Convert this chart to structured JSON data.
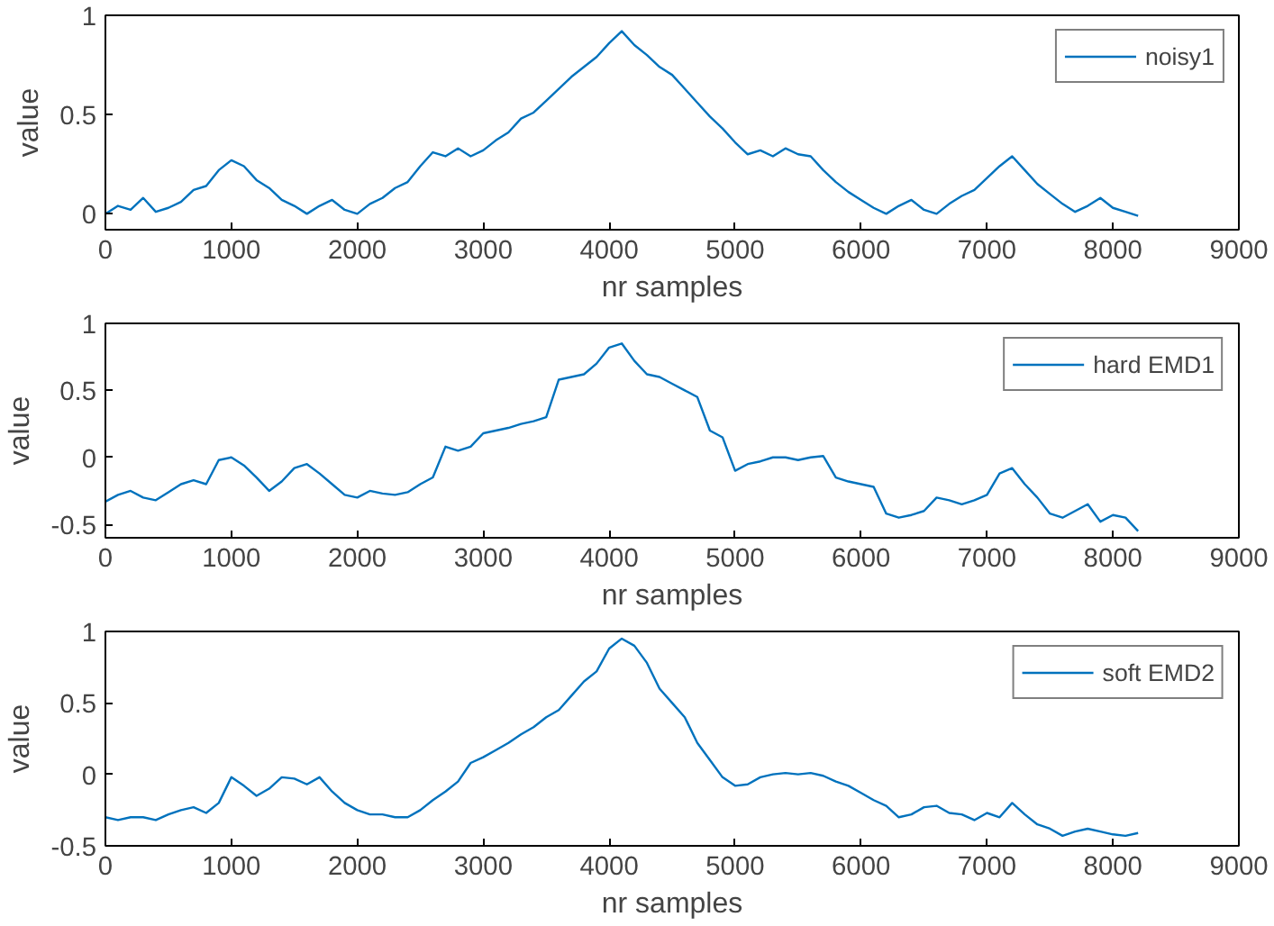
{
  "chart_data": [
    {
      "type": "line",
      "xlabel": "nr samples",
      "ylabel": "value",
      "xlim": [
        0,
        9000
      ],
      "xticks": [
        0,
        1000,
        2000,
        3000,
        4000,
        5000,
        6000,
        7000,
        8000,
        9000
      ],
      "ylim": [
        -0.08,
        1
      ],
      "yticks": [
        0,
        0.5,
        1
      ],
      "grid": false,
      "legend": "top right",
      "x": [
        0,
        100,
        200,
        300,
        400,
        500,
        600,
        700,
        800,
        900,
        1000,
        1100,
        1200,
        1300,
        1400,
        1500,
        1600,
        1700,
        1800,
        1900,
        2000,
        2100,
        2200,
        2300,
        2400,
        2500,
        2600,
        2700,
        2800,
        2900,
        3000,
        3100,
        3200,
        3300,
        3400,
        3500,
        3600,
        3700,
        3800,
        3900,
        4000,
        4100,
        4200,
        4300,
        4400,
        4500,
        4600,
        4700,
        4800,
        4900,
        5000,
        5100,
        5200,
        5300,
        5400,
        5500,
        5600,
        5700,
        5800,
        5900,
        6000,
        6100,
        6200,
        6300,
        6400,
        6500,
        6600,
        6700,
        6800,
        6900,
        7000,
        7100,
        7200,
        7300,
        7400,
        7500,
        7600,
        7700,
        7800,
        7900,
        8000,
        8100,
        8200
      ],
      "series": [
        {
          "name": "noisy1",
          "color": "#0072bd",
          "values": [
            0.0,
            0.04,
            0.02,
            0.08,
            0.01,
            0.03,
            0.06,
            0.12,
            0.14,
            0.22,
            0.27,
            0.24,
            0.17,
            0.13,
            0.07,
            0.04,
            0.0,
            0.04,
            0.07,
            0.02,
            0.0,
            0.05,
            0.08,
            0.13,
            0.16,
            0.24,
            0.31,
            0.29,
            0.33,
            0.29,
            0.32,
            0.37,
            0.41,
            0.48,
            0.51,
            0.57,
            0.63,
            0.69,
            0.74,
            0.79,
            0.86,
            0.92,
            0.85,
            0.8,
            0.74,
            0.7,
            0.63,
            0.56,
            0.49,
            0.43,
            0.36,
            0.3,
            0.32,
            0.29,
            0.33,
            0.3,
            0.29,
            0.22,
            0.16,
            0.11,
            0.07,
            0.03,
            0.0,
            0.04,
            0.07,
            0.02,
            0.0,
            0.05,
            0.09,
            0.12,
            0.18,
            0.24,
            0.29,
            0.22,
            0.15,
            0.1,
            0.05,
            0.01,
            0.04,
            0.08,
            0.03,
            0.01,
            -0.01
          ]
        }
      ]
    },
    {
      "type": "line",
      "xlabel": "nr samples",
      "ylabel": "value",
      "xlim": [
        0,
        9000
      ],
      "xticks": [
        0,
        1000,
        2000,
        3000,
        4000,
        5000,
        6000,
        7000,
        8000,
        9000
      ],
      "ylim": [
        -0.6,
        1
      ],
      "yticks": [
        -0.5,
        0,
        0.5,
        1
      ],
      "grid": false,
      "legend": "top right",
      "x": [
        0,
        100,
        200,
        300,
        400,
        500,
        600,
        700,
        800,
        900,
        1000,
        1100,
        1200,
        1300,
        1400,
        1500,
        1600,
        1700,
        1800,
        1900,
        2000,
        2100,
        2200,
        2300,
        2400,
        2500,
        2600,
        2700,
        2800,
        2900,
        3000,
        3100,
        3200,
        3300,
        3400,
        3500,
        3600,
        3700,
        3800,
        3900,
        4000,
        4100,
        4200,
        4300,
        4400,
        4500,
        4600,
        4700,
        4800,
        4900,
        5000,
        5100,
        5200,
        5300,
        5400,
        5500,
        5600,
        5700,
        5800,
        5900,
        6000,
        6100,
        6200,
        6300,
        6400,
        6500,
        6600,
        6700,
        6800,
        6900,
        7000,
        7100,
        7200,
        7300,
        7400,
        7500,
        7600,
        7700,
        7800,
        7900,
        8000,
        8100,
        8200
      ],
      "series": [
        {
          "name": "hard EMD1",
          "color": "#0072bd",
          "values": [
            -0.33,
            -0.28,
            -0.25,
            -0.3,
            -0.32,
            -0.26,
            -0.2,
            -0.17,
            -0.2,
            -0.02,
            0.0,
            -0.06,
            -0.15,
            -0.25,
            -0.18,
            -0.08,
            -0.05,
            -0.12,
            -0.2,
            -0.28,
            -0.3,
            -0.25,
            -0.27,
            -0.28,
            -0.26,
            -0.2,
            -0.15,
            0.08,
            0.05,
            0.08,
            0.18,
            0.2,
            0.22,
            0.25,
            0.27,
            0.3,
            0.58,
            0.6,
            0.62,
            0.7,
            0.82,
            0.85,
            0.72,
            0.62,
            0.6,
            0.55,
            0.5,
            0.45,
            0.2,
            0.15,
            -0.1,
            -0.05,
            -0.03,
            0.0,
            0.0,
            -0.02,
            0.0,
            0.01,
            -0.15,
            -0.18,
            -0.2,
            -0.22,
            -0.42,
            -0.45,
            -0.43,
            -0.4,
            -0.3,
            -0.32,
            -0.35,
            -0.32,
            -0.28,
            -0.12,
            -0.08,
            -0.2,
            -0.3,
            -0.42,
            -0.45,
            -0.4,
            -0.35,
            -0.48,
            -0.43,
            -0.45,
            -0.55
          ]
        }
      ]
    },
    {
      "type": "line",
      "xlabel": "nr samples",
      "ylabel": "value",
      "xlim": [
        0,
        9000
      ],
      "xticks": [
        0,
        1000,
        2000,
        3000,
        4000,
        5000,
        6000,
        7000,
        8000,
        9000
      ],
      "ylim": [
        -0.5,
        1
      ],
      "yticks": [
        -0.5,
        0,
        0.5,
        1
      ],
      "grid": false,
      "legend": "top right",
      "x": [
        0,
        100,
        200,
        300,
        400,
        500,
        600,
        700,
        800,
        900,
        1000,
        1100,
        1200,
        1300,
        1400,
        1500,
        1600,
        1700,
        1800,
        1900,
        2000,
        2100,
        2200,
        2300,
        2400,
        2500,
        2600,
        2700,
        2800,
        2900,
        3000,
        3100,
        3200,
        3300,
        3400,
        3500,
        3600,
        3700,
        3800,
        3900,
        4000,
        4100,
        4200,
        4300,
        4400,
        4500,
        4600,
        4700,
        4800,
        4900,
        5000,
        5100,
        5200,
        5300,
        5400,
        5500,
        5600,
        5700,
        5800,
        5900,
        6000,
        6100,
        6200,
        6300,
        6400,
        6500,
        6600,
        6700,
        6800,
        6900,
        7000,
        7100,
        7200,
        7300,
        7400,
        7500,
        7600,
        7700,
        7800,
        7900,
        8000,
        8100,
        8200
      ],
      "series": [
        {
          "name": "soft EMD2",
          "color": "#0072bd",
          "values": [
            -0.3,
            -0.32,
            -0.3,
            -0.3,
            -0.32,
            -0.28,
            -0.25,
            -0.23,
            -0.27,
            -0.2,
            -0.02,
            -0.08,
            -0.15,
            -0.1,
            -0.02,
            -0.03,
            -0.07,
            -0.02,
            -0.12,
            -0.2,
            -0.25,
            -0.28,
            -0.28,
            -0.3,
            -0.3,
            -0.25,
            -0.18,
            -0.12,
            -0.05,
            0.08,
            0.12,
            0.17,
            0.22,
            0.28,
            0.33,
            0.4,
            0.45,
            0.55,
            0.65,
            0.72,
            0.88,
            0.95,
            0.9,
            0.78,
            0.6,
            0.5,
            0.4,
            0.22,
            0.1,
            -0.02,
            -0.08,
            -0.07,
            -0.02,
            0.0,
            0.01,
            0.0,
            0.01,
            -0.01,
            -0.05,
            -0.08,
            -0.13,
            -0.18,
            -0.22,
            -0.3,
            -0.28,
            -0.23,
            -0.22,
            -0.27,
            -0.28,
            -0.32,
            -0.27,
            -0.3,
            -0.2,
            -0.28,
            -0.35,
            -0.38,
            -0.43,
            -0.4,
            -0.38,
            -0.4,
            -0.42,
            -0.43,
            -0.41
          ]
        }
      ]
    }
  ]
}
